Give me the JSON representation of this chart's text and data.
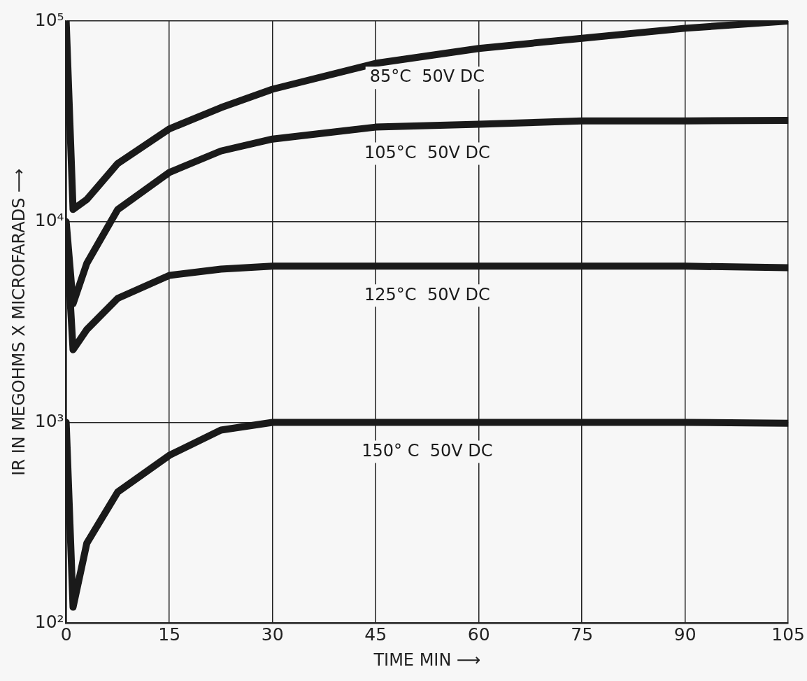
{
  "chart_data": {
    "type": "line",
    "xlabel": "TIME MIN ⟶",
    "ylabel": "IR IN MEGOHMS X MICROFARADS ⟶",
    "log": "y",
    "grid": true,
    "legend": false,
    "marker": "none",
    "line_style": "solid",
    "xlim": [
      0,
      105
    ],
    "xticks": [
      0,
      15,
      30,
      45,
      60,
      75,
      90,
      105
    ],
    "ylim": [
      100,
      100000
    ],
    "yticks": [
      {
        "value": 100,
        "label": "10²"
      },
      {
        "value": 1000,
        "label": "10³"
      },
      {
        "value": 10000,
        "label": "10⁴"
      },
      {
        "value": 100000,
        "label": "10⁵"
      }
    ],
    "x": [
      0,
      1,
      3,
      7.5,
      15,
      22.5,
      30,
      45,
      60,
      75,
      90,
      105
    ],
    "series": [
      {
        "name": "85°C  50V DC",
        "color": "#1a1a1a",
        "values": [
          100000,
          11500,
          12900,
          19500,
          29000,
          37000,
          45700,
          61500,
          73000,
          82000,
          92000,
          100000
        ]
      },
      {
        "name": "105°C  50V DC",
        "color": "#1a1a1a",
        "values": [
          10000,
          3900,
          6200,
          11500,
          17600,
          22500,
          25800,
          29600,
          30600,
          31800,
          31800,
          32000
        ]
      },
      {
        "name": "125°C  50V DC",
        "color": "#1a1a1a",
        "values": [
          9000,
          2300,
          2900,
          4150,
          5400,
          5800,
          6000,
          6000,
          6000,
          6000,
          6000,
          5900
        ]
      },
      {
        "name": "150° C  50V DC",
        "color": "#1a1a1a",
        "values": [
          1000,
          120,
          250,
          450,
          685,
          915,
          1000,
          1000,
          1000,
          1000,
          1000,
          990
        ]
      }
    ]
  }
}
